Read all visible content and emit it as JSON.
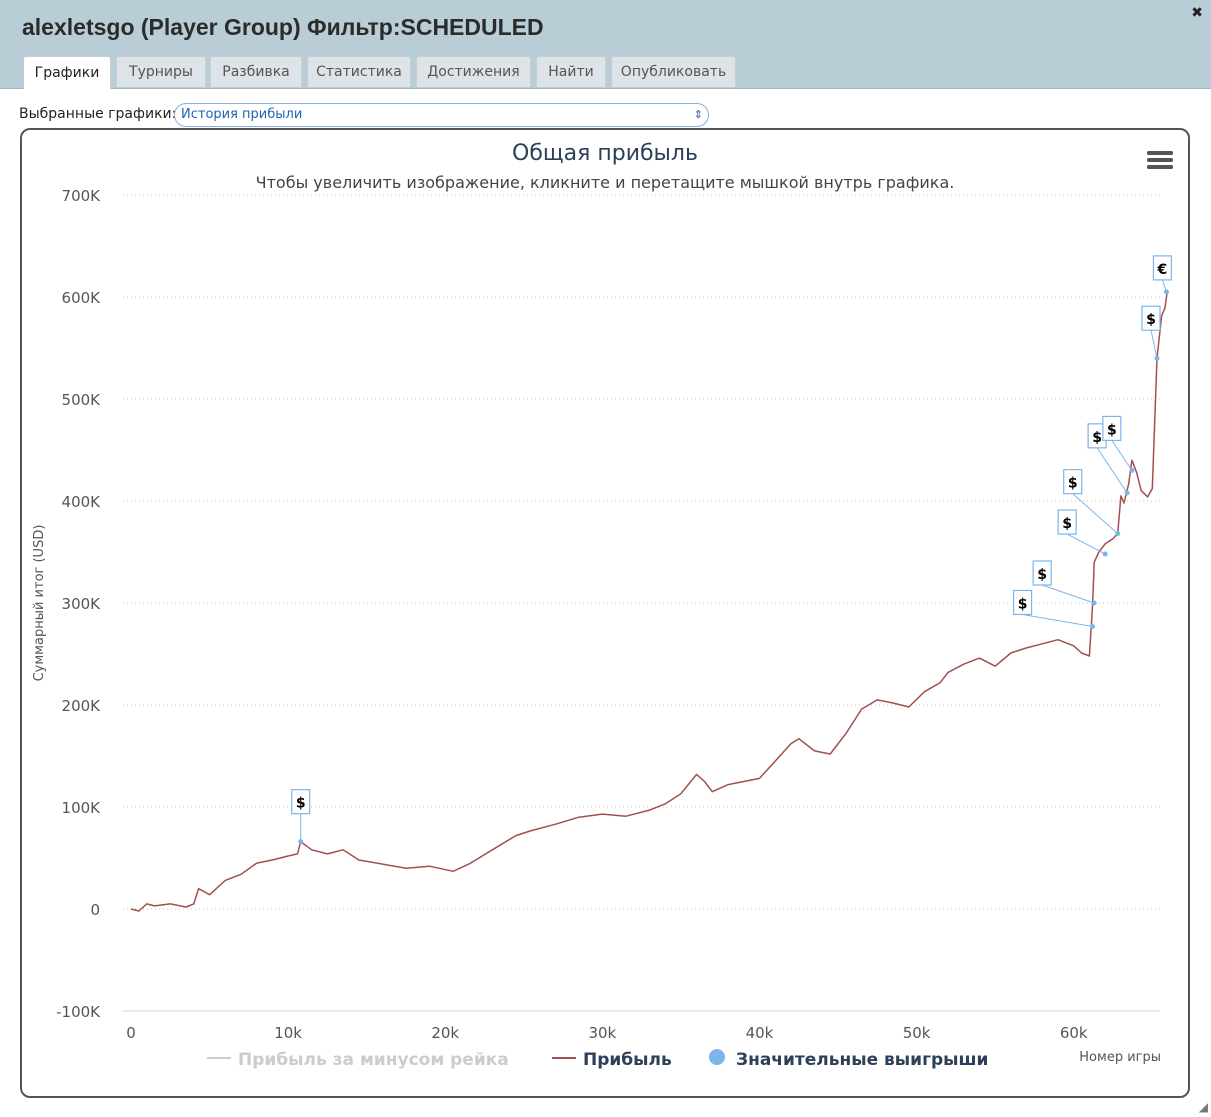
{
  "window": {
    "title": "alexletsgo (Player Group) Фильтр:SCHEDULED",
    "close_icon": "close-icon"
  },
  "tabs": [
    {
      "label": "Графики",
      "active": true
    },
    {
      "label": "Турниры",
      "active": false
    },
    {
      "label": "Разбивка",
      "active": false
    },
    {
      "label": "Статистика",
      "active": false
    },
    {
      "label": "Достижения",
      "active": false
    },
    {
      "label": "Найти",
      "active": false
    },
    {
      "label": "Опубликовать",
      "active": false
    }
  ],
  "selector": {
    "label": "Выбранные графики:",
    "value": "История прибыли"
  },
  "colors": {
    "profit": "#a0504f",
    "rakeless": "#cccccc",
    "marker": "#7cb5ec",
    "title": "#2d4059"
  },
  "chart_data": {
    "type": "line",
    "title": "Общая прибыль",
    "subtitle": "Чтобы увеличить изображение, кликните и перетащите мышкой внутрь графика.",
    "xlabel": "Номер игры",
    "ylabel": "Суммарный итог (USD)",
    "xlim": [
      0,
      66000
    ],
    "ylim": [
      -100000,
      700000
    ],
    "x_ticks": [
      "0",
      "10k",
      "20k",
      "30k",
      "40k",
      "50k",
      "60k"
    ],
    "y_ticks": [
      "-100K",
      "0",
      "100K",
      "200K",
      "300K",
      "400K",
      "500K",
      "600K",
      "700K"
    ],
    "grid": "horizontal dotted",
    "legend_position": "bottom",
    "menu_icon": "hamburger-menu-icon",
    "series": [
      {
        "name": "Прибыль за минусом рейка",
        "visible": false,
        "x": [],
        "y": []
      },
      {
        "name": "Прибыль",
        "x": [
          0,
          500,
          1000,
          1500,
          2500,
          3500,
          4000,
          4300,
          5000,
          6000,
          7000,
          8000,
          9000,
          10000,
          10600,
          10800,
          11500,
          12500,
          13500,
          14500,
          16000,
          17500,
          19000,
          20500,
          21500,
          23000,
          24500,
          25500,
          27000,
          28500,
          30000,
          31500,
          33000,
          34000,
          35000,
          36000,
          36500,
          37000,
          38000,
          39000,
          40000,
          41000,
          42000,
          42500,
          43500,
          44500,
          45500,
          46500,
          47500,
          48500,
          49500,
          50500,
          51500,
          52000,
          53000,
          54000,
          55000,
          56000,
          57000,
          58000,
          59000,
          59500,
          60000,
          60500,
          61000,
          61200,
          61300,
          61600,
          62000,
          62500,
          62800,
          63000,
          63200,
          63500,
          63700,
          64000,
          64300,
          64700,
          65000,
          65300,
          65600,
          65800,
          65950
        ],
        "y": [
          0,
          -2000,
          5000,
          3000,
          5000,
          2000,
          5000,
          20000,
          14000,
          28000,
          34000,
          45000,
          48000,
          52000,
          54000,
          66000,
          58000,
          54000,
          58000,
          48000,
          44000,
          40000,
          42000,
          37000,
          44000,
          58000,
          72000,
          77000,
          83000,
          90000,
          93000,
          91000,
          97000,
          103000,
          113000,
          132000,
          125000,
          115000,
          122000,
          125000,
          128000,
          145000,
          162000,
          167000,
          155000,
          152000,
          172000,
          196000,
          205000,
          202000,
          198000,
          213000,
          222000,
          232000,
          240000,
          246000,
          238000,
          251000,
          256000,
          260000,
          264000,
          261000,
          258000,
          251000,
          248000,
          298000,
          340000,
          350000,
          358000,
          363000,
          368000,
          405000,
          398000,
          417000,
          440000,
          428000,
          410000,
          404000,
          412000,
          540000,
          582000,
          589000,
          605000
        ]
      },
      {
        "name": "Значительные выигрыши",
        "type": "markers",
        "x": [
          10800,
          61300,
          61200,
          62000,
          62800,
          63400,
          63700,
          65300,
          65900
        ],
        "y": [
          66000,
          300000,
          277000,
          348000,
          368000,
          408000,
          430000,
          540000,
          605000
        ],
        "labels": [
          "$",
          "$",
          "$",
          "$",
          "$",
          "$",
          "$",
          "$",
          "€"
        ]
      }
    ]
  }
}
